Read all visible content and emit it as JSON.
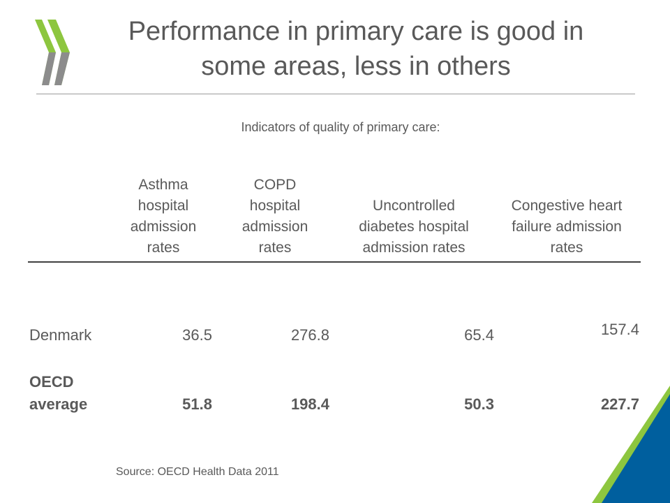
{
  "slide": {
    "title_line1": "Performance in primary care is good in",
    "title_line2": "some areas, less in others",
    "subtitle": "Indicators of quality of  primary care:",
    "source": "Source: OECD Health Data 2011"
  },
  "table": {
    "headers": [
      [
        "Asthma",
        "hospital",
        "admission",
        "rates"
      ],
      [
        "COPD",
        "hospital",
        "admission",
        "rates"
      ],
      [
        "Uncontrolled",
        "diabetes hospital",
        "admission rates"
      ],
      [
        "Congestive heart",
        "failure admission",
        "rates"
      ]
    ],
    "rows": [
      {
        "label": "Denmark",
        "values": [
          "36.5",
          "276.8",
          "65.4",
          "157.4"
        ]
      },
      {
        "label_line1": "OECD",
        "label_line2": "average",
        "values": [
          "51.8",
          "198.4",
          "50.3",
          "227.7"
        ]
      }
    ]
  },
  "colors": {
    "logo_green": "#8dc63f",
    "logo_gray": "#8c8c8c",
    "corner_green": "#8dc63f",
    "corner_blue": "#005f9e"
  }
}
